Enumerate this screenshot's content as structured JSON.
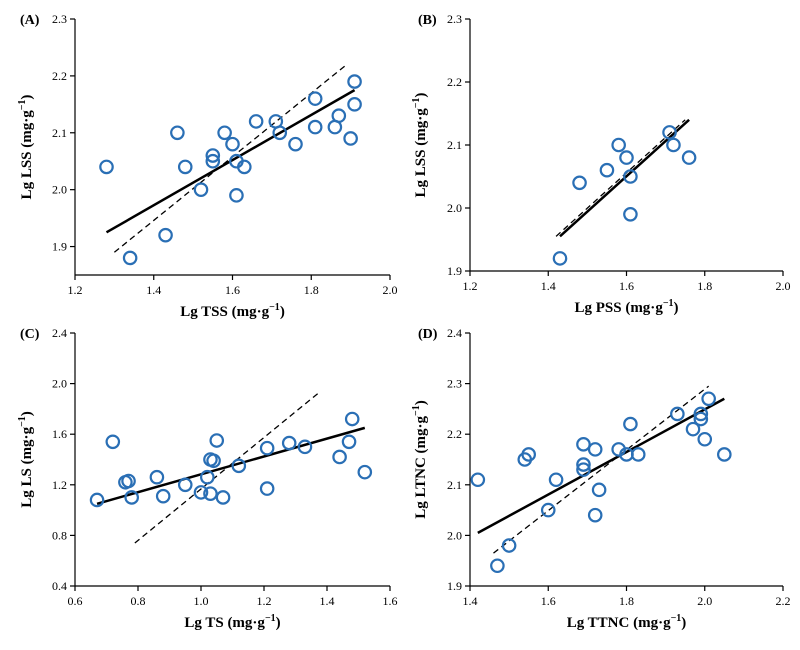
{
  "point_color": "#2a6fb5",
  "chart_data": [
    {
      "type": "scatter",
      "panel_label": "(A)",
      "xlabel": "Lg TSS (mg·g",
      "xlabel_sup": "−1",
      "xlabel_end": ")",
      "ylabel": "Lg LSS (mg·g",
      "ylabel_sup": "−1",
      "ylabel_end": ")",
      "xlim": [
        1.2,
        2.0
      ],
      "ylim": [
        1.85,
        2.3
      ],
      "xticks": [
        1.2,
        1.4,
        1.6,
        1.8,
        2.0
      ],
      "yticks": [
        1.9,
        2.0,
        2.1,
        2.2,
        2.3
      ],
      "xtick_labels": [
        "1.2",
        "1.4",
        "1.6",
        "1.8",
        "2.0"
      ],
      "ytick_labels": [
        "1.9",
        "2.0",
        "2.1",
        "2.2",
        "2.3"
      ],
      "points": [
        [
          1.28,
          2.04
        ],
        [
          1.34,
          1.88
        ],
        [
          1.43,
          1.92
        ],
        [
          1.46,
          2.1
        ],
        [
          1.48,
          2.04
        ],
        [
          1.52,
          2.0
        ],
        [
          1.55,
          2.05
        ],
        [
          1.55,
          2.06
        ],
        [
          1.58,
          2.1
        ],
        [
          1.6,
          2.08
        ],
        [
          1.61,
          1.99
        ],
        [
          1.61,
          2.05
        ],
        [
          1.63,
          2.04
        ],
        [
          1.66,
          2.12
        ],
        [
          1.71,
          2.12
        ],
        [
          1.72,
          2.1
        ],
        [
          1.76,
          2.08
        ],
        [
          1.81,
          2.16
        ],
        [
          1.81,
          2.11
        ],
        [
          1.86,
          2.11
        ],
        [
          1.87,
          2.13
        ],
        [
          1.9,
          2.09
        ],
        [
          1.91,
          2.19
        ],
        [
          1.91,
          2.15
        ]
      ],
      "fit_solid": [
        [
          1.28,
          1.925
        ],
        [
          1.91,
          2.175
        ]
      ],
      "fit_dashed": [
        [
          1.3,
          1.89
        ],
        [
          1.89,
          2.22
        ]
      ]
    },
    {
      "type": "scatter",
      "panel_label": "(B)",
      "xlabel": "Lg PSS (mg·g",
      "xlabel_sup": "−1",
      "xlabel_end": ")",
      "ylabel": "Lg LSS (mg·g",
      "ylabel_sup": "−1",
      "ylabel_end": ")",
      "xlim": [
        1.2,
        2.0
      ],
      "ylim": [
        1.9,
        2.3
      ],
      "xticks": [
        1.2,
        1.4,
        1.6,
        1.8,
        2.0
      ],
      "yticks": [
        1.9,
        2.0,
        2.1,
        2.2,
        2.3
      ],
      "xtick_labels": [
        "1.2",
        "1.4",
        "1.6",
        "1.8",
        "2.0"
      ],
      "ytick_labels": [
        "1.9",
        "2.0",
        "2.1",
        "2.2",
        "2.3"
      ],
      "points": [
        [
          1.43,
          1.92
        ],
        [
          1.48,
          2.04
        ],
        [
          1.55,
          2.06
        ],
        [
          1.58,
          2.1
        ],
        [
          1.6,
          2.08
        ],
        [
          1.61,
          2.05
        ],
        [
          1.61,
          1.99
        ],
        [
          1.71,
          2.12
        ],
        [
          1.72,
          2.1
        ],
        [
          1.76,
          2.08
        ]
      ],
      "fit_solid": [
        [
          1.43,
          1.955
        ],
        [
          1.76,
          2.14
        ]
      ],
      "fit_dashed": [
        [
          1.42,
          1.955
        ],
        [
          1.75,
          2.14
        ]
      ]
    },
    {
      "type": "scatter",
      "panel_label": "(C)",
      "xlabel": "Lg TS (mg·g",
      "xlabel_sup": "−1",
      "xlabel_end": ")",
      "ylabel": "Lg LS (mg·g",
      "ylabel_sup": "−1",
      "ylabel_end": ")",
      "xlim": [
        0.6,
        1.6
      ],
      "ylim": [
        0.4,
        2.4
      ],
      "xticks": [
        0.6,
        0.8,
        1.0,
        1.2,
        1.4,
        1.6
      ],
      "yticks": [
        0.4,
        0.8,
        1.2,
        1.6,
        2.0,
        2.4
      ],
      "xtick_labels": [
        "0.6",
        "0.8",
        "1.0",
        "1.2",
        "1.4",
        "1.6"
      ],
      "ytick_labels": [
        "0.4",
        "0.8",
        "1.2",
        "1.6",
        "2.0",
        "2.4"
      ],
      "points": [
        [
          0.67,
          1.08
        ],
        [
          0.72,
          1.54
        ],
        [
          0.76,
          1.22
        ],
        [
          0.77,
          1.23
        ],
        [
          0.78,
          1.1
        ],
        [
          0.86,
          1.26
        ],
        [
          0.88,
          1.11
        ],
        [
          0.95,
          1.2
        ],
        [
          1.0,
          1.14
        ],
        [
          1.02,
          1.26
        ],
        [
          1.03,
          1.4
        ],
        [
          1.03,
          1.13
        ],
        [
          1.04,
          1.39
        ],
        [
          1.05,
          1.55
        ],
        [
          1.07,
          1.1
        ],
        [
          1.12,
          1.35
        ],
        [
          1.21,
          1.49
        ],
        [
          1.21,
          1.17
        ],
        [
          1.28,
          1.53
        ],
        [
          1.33,
          1.5
        ],
        [
          1.44,
          1.42
        ],
        [
          1.47,
          1.54
        ],
        [
          1.48,
          1.72
        ],
        [
          1.52,
          1.3
        ]
      ],
      "fit_solid": [
        [
          0.67,
          1.05
        ],
        [
          1.52,
          1.65
        ]
      ],
      "fit_dashed": [
        [
          0.79,
          0.74
        ],
        [
          1.38,
          1.94
        ]
      ]
    },
    {
      "type": "scatter",
      "panel_label": "(D)",
      "xlabel": "Lg TTNC (mg·g",
      "xlabel_sup": "−1",
      "xlabel_end": ")",
      "ylabel": "Lg LTNC (mg·g",
      "ylabel_sup": "−1",
      "ylabel_end": ")",
      "xlim": [
        1.4,
        2.2
      ],
      "ylim": [
        1.9,
        2.4
      ],
      "xticks": [
        1.4,
        1.6,
        1.8,
        2.0,
        2.2
      ],
      "yticks": [
        1.9,
        2.0,
        2.1,
        2.2,
        2.3,
        2.4
      ],
      "xtick_labels": [
        "1.4",
        "1.6",
        "1.8",
        "2.0",
        "2.2"
      ],
      "ytick_labels": [
        "1.9",
        "2.0",
        "2.1",
        "2.2",
        "2.3",
        "2.4"
      ],
      "points": [
        [
          1.42,
          2.11
        ],
        [
          1.47,
          1.94
        ],
        [
          1.5,
          1.98
        ],
        [
          1.54,
          2.15
        ],
        [
          1.55,
          2.16
        ],
        [
          1.6,
          2.05
        ],
        [
          1.62,
          2.11
        ],
        [
          1.69,
          2.13
        ],
        [
          1.69,
          2.14
        ],
        [
          1.69,
          2.18
        ],
        [
          1.72,
          2.04
        ],
        [
          1.72,
          2.17
        ],
        [
          1.73,
          2.09
        ],
        [
          1.78,
          2.17
        ],
        [
          1.8,
          2.16
        ],
        [
          1.81,
          2.22
        ],
        [
          1.83,
          2.16
        ],
        [
          1.93,
          2.24
        ],
        [
          1.97,
          2.21
        ],
        [
          1.99,
          2.24
        ],
        [
          1.99,
          2.23
        ],
        [
          2.0,
          2.19
        ],
        [
          2.01,
          2.27
        ],
        [
          2.05,
          2.16
        ]
      ],
      "fit_solid": [
        [
          1.42,
          2.005
        ],
        [
          2.05,
          2.27
        ]
      ],
      "fit_dashed": [
        [
          1.46,
          1.965
        ],
        [
          2.01,
          2.295
        ]
      ]
    }
  ]
}
